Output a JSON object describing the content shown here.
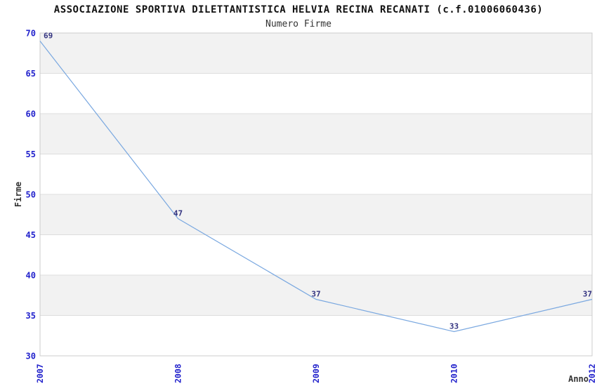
{
  "chart_data": {
    "type": "line",
    "title": "ASSOCIAZIONE SPORTIVA DILETTANTISTICA HELVIA RECINA RECANATI (c.f.01006060436)",
    "subtitle": "Numero Firme",
    "categories": [
      "2007",
      "2008",
      "2009",
      "2010",
      "2012"
    ],
    "values": [
      69,
      47,
      37,
      33,
      37
    ],
    "point_labels": [
      "69",
      "47",
      "37",
      "33",
      "37"
    ],
    "xlabel": "Anno",
    "ylabel": "Firme",
    "ylim": [
      30,
      70
    ],
    "ytick_step": 5,
    "ytick_labels": [
      "30",
      "35",
      "40",
      "45",
      "50",
      "55",
      "60",
      "65",
      "70"
    ],
    "grid": "alternating-horizontal-bands",
    "legend": "none",
    "colors": {
      "line": "#7AA8E0",
      "band_fill": "#F2F2F2",
      "band_alt_fill": "#FFFFFF",
      "grid_line": "#DDDDDD",
      "plot_border": "#CCCCCC",
      "axis_tick_label": "#2222CC",
      "data_label": "#333380",
      "axis_title": "#333333",
      "title_color": "#111111"
    }
  }
}
